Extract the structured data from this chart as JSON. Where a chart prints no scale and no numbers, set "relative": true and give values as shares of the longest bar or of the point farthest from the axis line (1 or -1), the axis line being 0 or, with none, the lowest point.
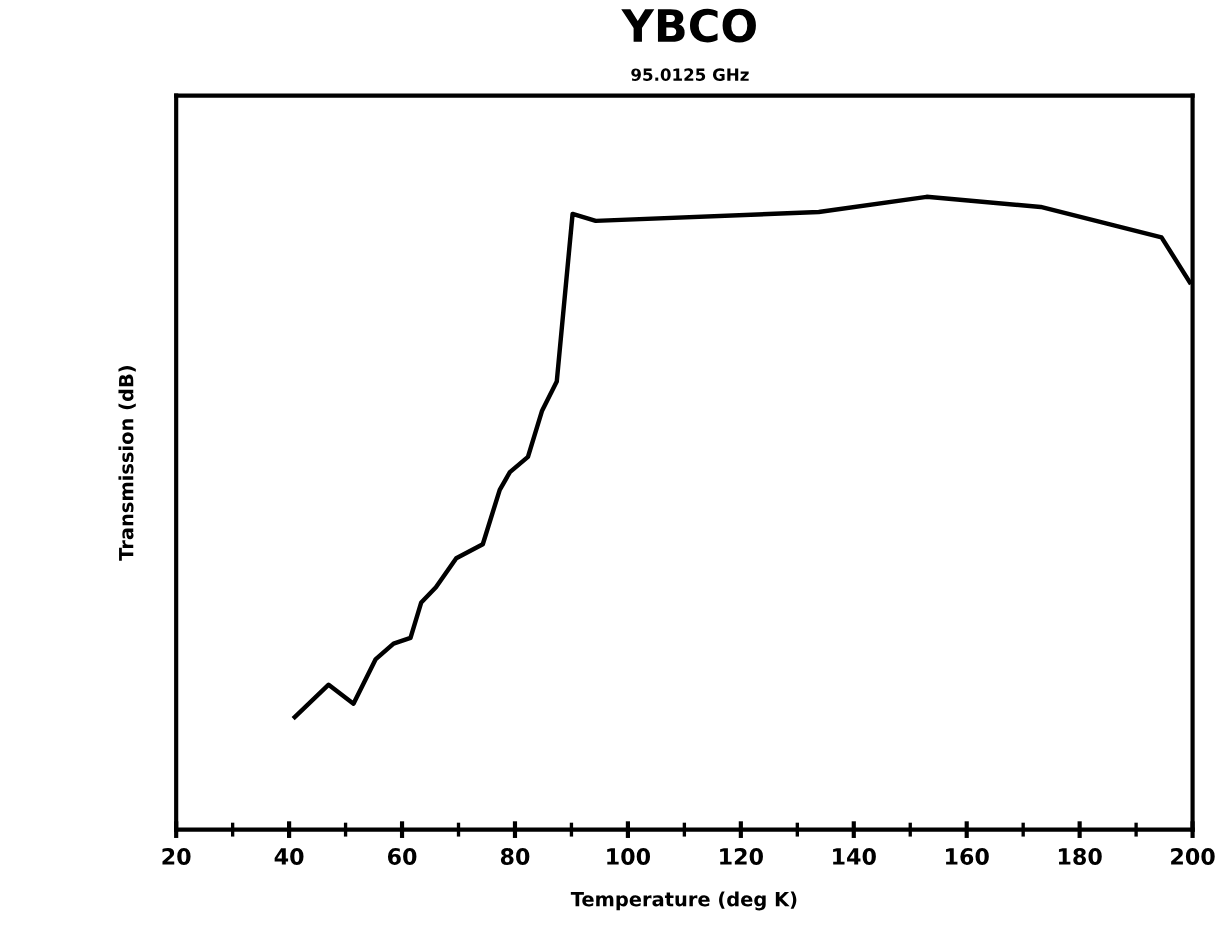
{
  "chart_data": {
    "type": "line",
    "title": "YBCO",
    "subtitle": "95.0125 GHz",
    "xlabel": "Temperature (deg K)",
    "ylabel": "Transmission (dB)",
    "relative": true,
    "tick_labels": "x",
    "x": [
      41.0,
      47.0,
      51.4,
      55.3,
      58.5,
      61.5,
      63.4,
      66.0,
      69.6,
      74.3,
      77.3,
      79.1,
      82.3,
      84.8,
      87.4,
      90.2,
      94.3,
      133.8,
      152.9,
      173.1,
      194.5,
      199.5
    ],
    "series": [
      {
        "color": "#000000",
        "values": [
          0.178,
          0.229,
          0.199,
          0.269,
          0.294,
          0.303,
          0.359,
          0.383,
          0.429,
          0.451,
          0.537,
          0.565,
          0.589,
          0.662,
          0.708,
          0.973,
          0.962,
          0.976,
          1,
          0.984,
          0.936,
          0.865
        ]
      }
    ],
    "xlim": [
      20,
      200
    ],
    "xticks": [
      20,
      40,
      60,
      80,
      100,
      120,
      140,
      160,
      180,
      200
    ],
    "grid": false,
    "legend": false,
    "marker": "none",
    "line_style": "solid"
  }
}
